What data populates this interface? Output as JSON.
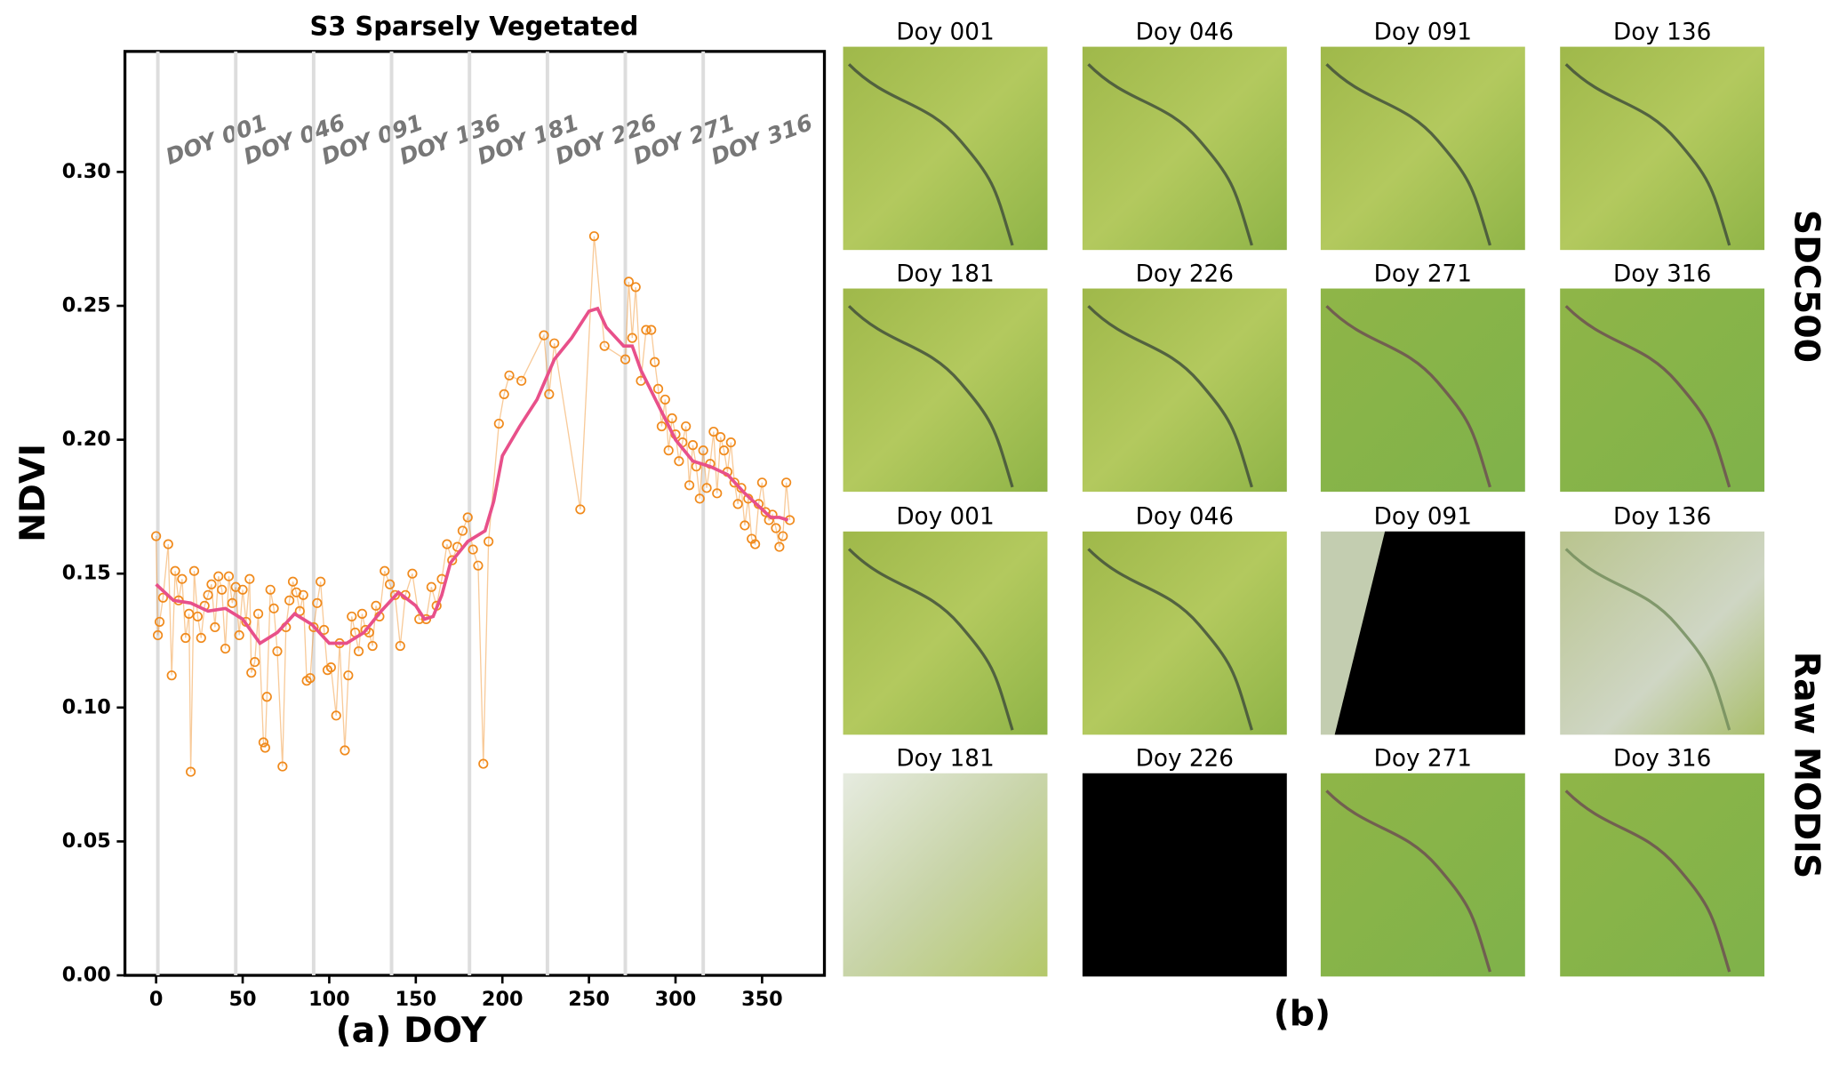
{
  "chart_data": {
    "type": "line",
    "title": "S3 Sparsely Vegetated",
    "xlabel": "(a) DOY",
    "ylabel": "NDVI",
    "xlim": [
      -18,
      386
    ],
    "xticks": [
      0,
      50,
      100,
      150,
      200,
      250,
      300,
      350
    ],
    "ylim": [
      0,
      0.345
    ],
    "yticks": [
      {
        "value": 0,
        "label": "0.00"
      },
      {
        "value": 0.05,
        "label": "0.05"
      },
      {
        "value": 0.1,
        "label": "0.10"
      },
      {
        "value": 0.15,
        "label": "0.15"
      },
      {
        "value": 0.2,
        "label": "0.20"
      },
      {
        "value": 0.25,
        "label": "0.25"
      },
      {
        "value": 0.3,
        "label": "0.30"
      }
    ],
    "annotations": [
      {
        "x": 1,
        "text": "DOY 001"
      },
      {
        "x": 46,
        "text": "DOY 046"
      },
      {
        "x": 91,
        "text": "DOY 091"
      },
      {
        "x": 136,
        "text": "DOY 136"
      },
      {
        "x": 181,
        "text": "DOY 181"
      },
      {
        "x": 226,
        "text": "DOY 226"
      },
      {
        "x": 271,
        "text": "DOY 271"
      },
      {
        "x": 316,
        "text": "DOY 316"
      }
    ],
    "series": [
      {
        "type": "scatter",
        "color": "#f08a1c",
        "x": [
          0,
          1,
          2,
          4,
          7,
          9,
          11,
          13,
          15,
          17,
          19,
          20,
          22,
          24,
          26,
          28,
          30,
          32,
          34,
          36,
          38,
          40,
          42,
          44,
          46,
          48,
          50,
          52,
          54,
          55,
          57,
          59,
          62,
          63,
          64,
          66,
          68,
          70,
          73,
          75,
          77,
          79,
          81,
          83,
          85,
          87,
          89,
          91,
          93,
          95,
          97,
          99,
          101,
          104,
          106,
          109,
          111,
          113,
          115,
          117,
          119,
          121,
          123,
          125,
          127,
          129,
          132,
          135,
          138,
          141,
          144,
          148,
          152,
          156,
          159,
          162,
          165,
          168,
          171,
          174,
          177,
          180,
          183,
          186,
          189,
          192,
          198,
          201,
          204,
          211,
          224,
          227,
          230,
          245,
          253,
          259,
          271,
          273,
          275,
          277,
          280,
          283,
          286,
          288,
          290,
          292,
          294,
          296,
          298,
          300,
          302,
          304,
          306,
          308,
          310,
          312,
          314,
          316,
          318,
          320,
          322,
          324,
          326,
          328,
          330,
          332,
          334,
          336,
          338,
          340,
          342,
          344,
          346,
          348,
          350,
          352,
          354,
          356,
          358,
          360,
          362,
          364,
          366
        ],
        "values": [
          0.164,
          0.127,
          0.132,
          0.141,
          0.161,
          0.112,
          0.151,
          0.14,
          0.148,
          0.126,
          0.135,
          0.076,
          0.151,
          0.134,
          0.126,
          0.138,
          0.142,
          0.146,
          0.13,
          0.149,
          0.144,
          0.122,
          0.149,
          0.139,
          0.145,
          0.127,
          0.144,
          0.132,
          0.148,
          0.113,
          0.117,
          0.135,
          0.087,
          0.085,
          0.104,
          0.144,
          0.137,
          0.121,
          0.078,
          0.13,
          0.14,
          0.147,
          0.143,
          0.136,
          0.142,
          0.11,
          0.111,
          0.13,
          0.139,
          0.147,
          0.129,
          0.114,
          0.115,
          0.097,
          0.124,
          0.084,
          0.112,
          0.134,
          0.128,
          0.121,
          0.135,
          0.129,
          0.128,
          0.123,
          0.138,
          0.134,
          0.151,
          0.146,
          0.142,
          0.123,
          0.142,
          0.15,
          0.133,
          0.133,
          0.145,
          0.138,
          0.148,
          0.161,
          0.155,
          0.16,
          0.166,
          0.171,
          0.159,
          0.153,
          0.079,
          0.162,
          0.206,
          0.217,
          0.224,
          0.222,
          0.239,
          0.217,
          0.236,
          0.174,
          0.276,
          0.235,
          0.23,
          0.259,
          0.238,
          0.257,
          0.222,
          0.241,
          0.241,
          0.229,
          0.219,
          0.205,
          0.215,
          0.196,
          0.208,
          0.202,
          0.192,
          0.199,
          0.205,
          0.183,
          0.198,
          0.19,
          0.178,
          0.196,
          0.182,
          0.191,
          0.203,
          0.18,
          0.201,
          0.196,
          0.188,
          0.199,
          0.184,
          0.176,
          0.182,
          0.168,
          0.178,
          0.163,
          0.161,
          0.176,
          0.184,
          0.173,
          0.17,
          0.172,
          0.167,
          0.16,
          0.164,
          0.184,
          0.17
        ]
      },
      {
        "type": "line",
        "color": "#e8508a",
        "x": [
          0,
          10,
          20,
          30,
          40,
          50,
          60,
          70,
          80,
          90,
          100,
          110,
          120,
          130,
          140,
          150,
          155,
          160,
          165,
          170,
          180,
          190,
          195,
          200,
          210,
          220,
          230,
          240,
          250,
          255,
          260,
          270,
          275,
          280,
          290,
          300,
          310,
          320,
          330,
          340,
          350,
          355,
          360,
          365
        ],
        "values": [
          0.146,
          0.14,
          0.139,
          0.136,
          0.137,
          0.133,
          0.124,
          0.128,
          0.135,
          0.131,
          0.124,
          0.124,
          0.128,
          0.136,
          0.143,
          0.138,
          0.133,
          0.134,
          0.142,
          0.154,
          0.162,
          0.166,
          0.177,
          0.194,
          0.205,
          0.215,
          0.23,
          0.238,
          0.248,
          0.249,
          0.242,
          0.235,
          0.235,
          0.226,
          0.213,
          0.2,
          0.192,
          0.19,
          0.187,
          0.18,
          0.174,
          0.171,
          0.171,
          0.17
        ]
      }
    ]
  },
  "panel_b": {
    "label": "(b)",
    "groups": [
      {
        "name": "SDC500",
        "tiles": [
          "Doy 001",
          "Doy 046",
          "Doy 091",
          "Doy 136",
          "Doy 181",
          "Doy 226",
          "Doy 271",
          "Doy 316"
        ]
      },
      {
        "name": "Raw MODIS",
        "tiles": [
          "Doy 001",
          "Doy 046",
          "Doy 091",
          "Doy 136",
          "Doy 181",
          "Doy 226",
          "Doy 271",
          "Doy 316"
        ]
      }
    ]
  }
}
